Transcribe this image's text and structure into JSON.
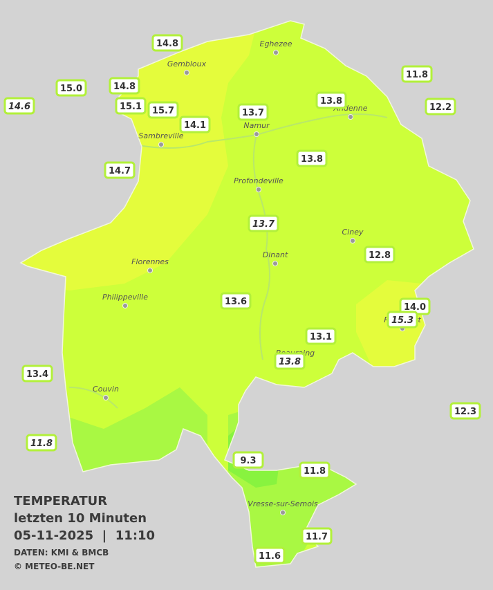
{
  "legend": {
    "title": "TEMPERATUR",
    "subtitle": "letzten 10 Minuten",
    "timestamp": "05-11-2025  |  11:10",
    "source": "DATEN: KMI & BMCB",
    "copyright": "© METEO-BE.NET"
  },
  "towns": [
    "Eghezee",
    "Gembloux",
    "Andenne",
    "Namur",
    "Sambreville",
    "Profondeville",
    "Ciney",
    "Dinant",
    "Florennes",
    "Philippeville",
    "Beauraing",
    "Rochefort",
    "Couvin",
    "Vresse-sur-Semois"
  ],
  "stations": [
    "14.8",
    "15.0",
    "14.6",
    "14.8",
    "15.1",
    "15.7",
    "14.1",
    "13.7",
    "13.8",
    "11.8",
    "12.2",
    "14.7",
    "13.8",
    "13.7",
    "12.8",
    "13.6",
    "14.0",
    "15.3",
    "13.1",
    "13.8",
    "13.4",
    "12.3",
    "11.8",
    "9.3",
    "11.8",
    "11.7",
    "11.6"
  ]
}
